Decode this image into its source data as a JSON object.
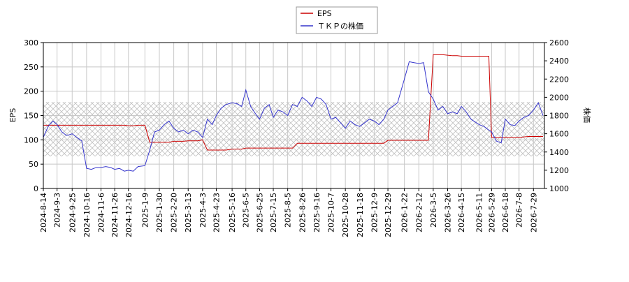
{
  "chart_data": {
    "type": "line",
    "ylabel": "EPS",
    "y2label": "株価",
    "xlim": [
      "2024-8-14",
      "2026-8-14"
    ],
    "ylim": [
      0,
      300
    ],
    "yticks": [
      0,
      50,
      100,
      150,
      200,
      250,
      300
    ],
    "y2lim": [
      1000,
      2600
    ],
    "y2ticks": [
      1000,
      1200,
      1400,
      1600,
      1800,
      2000,
      2200,
      2400,
      2600
    ],
    "grid": true,
    "legend": "top",
    "xticks": [
      "2024-8-14",
      "2024-9-3",
      "2024-9-25",
      "2024-10-16",
      "2024-11-6",
      "2024-11-26",
      "2024-12-16",
      "2025-1-9",
      "2025-1-30",
      "2025-2-20",
      "2025-3-13",
      "2025-4-3",
      "2025-4-23",
      "2025-5-16",
      "2025-6-5",
      "2025-6-25",
      "2025-7-15",
      "2025-8-5",
      "2025-8-26",
      "2025-9-16",
      "2025-10-7",
      "2025-10-28",
      "2025-11-18",
      "2025-12-9",
      "2025-12-29",
      "2026-1-22",
      "2026-2-12",
      "2026-3-5",
      "2026-3-26",
      "2026-4-15",
      "2026-5-11",
      "2026-5-29",
      "2026-6-18",
      "2026-7-8",
      "2026-7-29"
    ],
    "x": [
      "2024-8-14",
      "2024-8-21",
      "2024-8-28",
      "2024-9-3",
      "2024-9-10",
      "2024-9-17",
      "2024-9-25",
      "2024-10-2",
      "2024-10-9",
      "2024-10-16",
      "2024-10-23",
      "2024-10-30",
      "2024-11-6",
      "2024-11-13",
      "2024-11-20",
      "2024-11-26",
      "2024-12-3",
      "2024-12-10",
      "2024-12-16",
      "2024-12-23",
      "2024-12-30",
      "2025-1-9",
      "2025-1-16",
      "2025-1-23",
      "2025-1-30",
      "2025-2-6",
      "2025-2-13",
      "2025-2-20",
      "2025-2-27",
      "2025-3-6",
      "2025-3-13",
      "2025-3-20",
      "2025-3-27",
      "2025-4-3",
      "2025-4-10",
      "2025-4-17",
      "2025-4-23",
      "2025-4-30",
      "2025-5-7",
      "2025-5-16",
      "2025-5-23",
      "2025-5-30",
      "2025-6-5",
      "2025-6-12",
      "2025-6-19",
      "2025-6-25",
      "2025-7-2",
      "2025-7-9",
      "2025-7-15",
      "2025-7-22",
      "2025-7-29",
      "2025-8-5",
      "2025-8-12",
      "2025-8-19",
      "2025-8-26",
      "2025-9-2",
      "2025-9-9",
      "2025-9-16",
      "2025-9-23",
      "2025-9-30",
      "2025-10-7",
      "2025-10-14",
      "2025-10-21",
      "2025-10-28",
      "2025-11-4",
      "2025-11-11",
      "2025-11-18",
      "2025-11-25",
      "2025-12-2",
      "2025-12-9",
      "2025-12-16",
      "2025-12-23",
      "2025-12-29",
      "2026-1-5",
      "2026-1-12",
      "2026-1-22",
      "2026-1-29",
      "2026-2-5",
      "2026-2-12",
      "2026-2-19",
      "2026-2-26",
      "2026-3-5",
      "2026-3-12",
      "2026-3-19",
      "2026-3-26",
      "2026-4-2",
      "2026-4-9",
      "2026-4-15",
      "2026-4-22",
      "2026-4-29",
      "2026-5-11",
      "2026-5-18",
      "2026-5-25",
      "2026-5-29",
      "2026-6-5",
      "2026-6-12",
      "2026-6-18",
      "2026-6-25",
      "2026-7-2",
      "2026-7-8",
      "2026-7-15",
      "2026-7-22",
      "2026-7-29",
      "2026-8-5",
      "2026-8-12"
    ],
    "series": [
      {
        "name": "EPS",
        "color": "#cc0000",
        "values": [
          130,
          130,
          130,
          130,
          130,
          130,
          130,
          130,
          130,
          130,
          130,
          130,
          130,
          130,
          130,
          130,
          130,
          130,
          129,
          129,
          130,
          130,
          95,
          95,
          95,
          95,
          95,
          97,
          97,
          97,
          98,
          98,
          98,
          100,
          79,
          79,
          79,
          79,
          79,
          81,
          81,
          81,
          83,
          83,
          83,
          83,
          83,
          83,
          83,
          83,
          83,
          83,
          83,
          93,
          93,
          93,
          93,
          93,
          93,
          93,
          93,
          93,
          93,
          93,
          93,
          93,
          93,
          93,
          93,
          93,
          93,
          93,
          99,
          99,
          99,
          99,
          99,
          99,
          99,
          99,
          99,
          275,
          275,
          275,
          274,
          273,
          273,
          272,
          272,
          272,
          272,
          272,
          272,
          105,
          105,
          105,
          105,
          105,
          105,
          105,
          106,
          107,
          107,
          107,
          107
        ]
      },
      {
        "name": "ＴＫＰの株価",
        "color": "#3333cc",
        "axis": "y2",
        "values": [
          1560,
          1680,
          1740,
          1700,
          1620,
          1580,
          1600,
          1560,
          1520,
          1220,
          1210,
          1230,
          1230,
          1240,
          1230,
          1210,
          1220,
          1190,
          1200,
          1190,
          1240,
          1250,
          1420,
          1620,
          1640,
          1700,
          1740,
          1660,
          1620,
          1640,
          1600,
          1640,
          1620,
          1560,
          1760,
          1700,
          1800,
          1880,
          1920,
          1940,
          1930,
          1900,
          2080,
          1900,
          1820,
          1760,
          1880,
          1920,
          1780,
          1860,
          1840,
          1800,
          1920,
          1900,
          2000,
          1960,
          1900,
          2000,
          1980,
          1920,
          1760,
          1780,
          1720,
          1660,
          1740,
          1700,
          1680,
          1720,
          1760,
          1740,
          1700,
          1760,
          1860,
          1900,
          1940,
          2200,
          2390,
          2380,
          2370,
          2380,
          2060,
          1980,
          1860,
          1900,
          1820,
          1840,
          1820,
          1900,
          1840,
          1760,
          1700,
          1680,
          1640,
          1620,
          1520,
          1500,
          1760,
          1700,
          1690,
          1740,
          1780,
          1800,
          1860,
          1940,
          1800
        ]
      }
    ]
  }
}
